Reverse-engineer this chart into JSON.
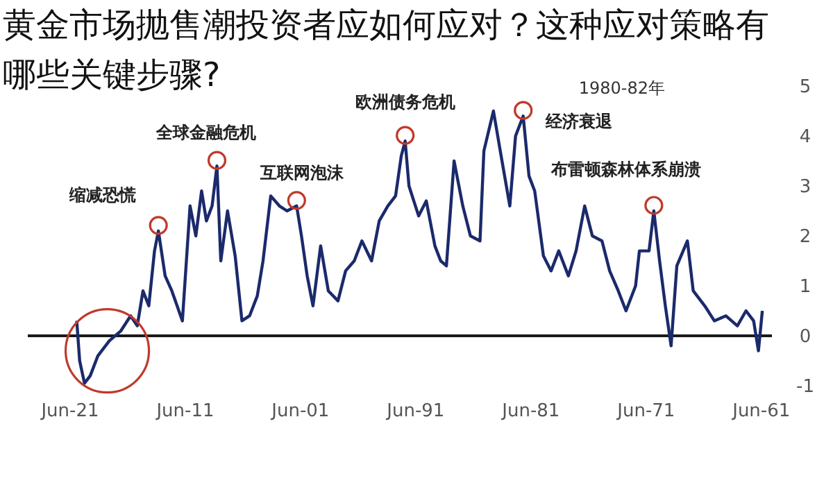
{
  "chart_data": {
    "type": "line",
    "title": "黄金市场抛售潮投资者应如何应对？这种应对策略有哪些关键步骤?",
    "x": [
      "2020-11",
      "2020-08",
      "2020-03",
      "2019-09",
      "2019-01",
      "2018-01",
      "2017-01",
      "2016-03",
      "2015-08",
      "2015-02",
      "2014-08",
      "2014-02",
      "2013-10",
      "2013-03",
      "2012-08",
      "2011-09",
      "2011-01",
      "2010-07",
      "2010-01",
      "2009-08",
      "2009-02",
      "2008-09",
      "2008-05",
      "2007-10",
      "2007-02",
      "2006-07",
      "2005-11",
      "2005-03",
      "2004-09",
      "2004-01",
      "2003-04",
      "2002-08",
      "2001-10",
      "2001-05",
      "2000-11",
      "2000-05",
      "1999-09",
      "1999-01",
      "1998-03",
      "1997-07",
      "1996-10",
      "1996-02",
      "1995-04",
      "1994-08",
      "1993-11",
      "1993-03",
      "1992-09",
      "1992-05",
      "1992-01",
      "1991-03",
      "1990-07",
      "1989-10",
      "1989-04",
      "1988-10",
      "1988-02",
      "1987-05",
      "1986-09",
      "1985-11",
      "1985-07",
      "1984-09",
      "1984-01",
      "1983-04",
      "1982-10",
      "1982-02",
      "1981-08",
      "1981-02",
      "1980-05",
      "1979-09",
      "1979-01",
      "1978-03",
      "1977-07",
      "1976-10",
      "1976-02",
      "1975-04",
      "1974-08",
      "1973-11",
      "1973-03",
      "1972-05",
      "1972-01",
      "1971-03",
      "1970-10",
      "1970-04",
      "1969-10",
      "1969-04",
      "1968-10",
      "1967-11",
      "1967-05",
      "1966-05",
      "1965-07",
      "1964-07",
      "1963-07",
      "1962-10",
      "1962-02",
      "1961-09",
      "1961-05"
    ],
    "series": [
      {
        "color": "#1b2a6b",
        "values": [
          0.3,
          -0.5,
          -0.95,
          -0.8,
          -0.4,
          -0.1,
          0.1,
          0.4,
          0.2,
          0.9,
          0.6,
          1.7,
          2.1,
          1.2,
          0.9,
          0.3,
          2.6,
          2.0,
          2.9,
          2.3,
          2.6,
          3.4,
          1.5,
          2.5,
          1.6,
          0.3,
          0.4,
          0.8,
          1.5,
          2.8,
          2.6,
          2.5,
          2.6,
          2.0,
          1.2,
          0.6,
          1.8,
          0.9,
          0.7,
          1.3,
          1.5,
          1.9,
          1.5,
          2.3,
          2.6,
          2.8,
          3.6,
          3.9,
          3.0,
          2.4,
          2.7,
          1.8,
          1.5,
          1.4,
          3.5,
          2.6,
          2.0,
          1.9,
          3.7,
          4.5,
          3.6,
          2.6,
          4.0,
          4.4,
          3.2,
          2.9,
          1.6,
          1.3,
          1.7,
          1.2,
          1.7,
          2.6,
          2.0,
          1.9,
          1.3,
          0.9,
          0.5,
          1.0,
          1.7,
          1.7,
          2.5,
          1.5,
          0.6,
          -0.2,
          1.4,
          1.9,
          0.9,
          0.6,
          0.3,
          0.4,
          0.2,
          0.5,
          0.3,
          -0.3,
          0.5
        ]
      }
    ],
    "xlim": [
      "2025-02",
      "1960-07"
    ],
    "xticks": [
      {
        "value": "2021-06",
        "label": "Jun-21"
      },
      {
        "value": "2011-06",
        "label": "Jun-11"
      },
      {
        "value": "2001-06",
        "label": "Jun-01"
      },
      {
        "value": "1991-06",
        "label": "Jun-91"
      },
      {
        "value": "1981-06",
        "label": "Jun-81"
      },
      {
        "value": "1971-06",
        "label": "Jun-71"
      },
      {
        "value": "1961-06",
        "label": "Jun-61"
      }
    ],
    "ylim": [
      -1,
      5
    ],
    "yticks": [
      -1,
      0,
      1,
      2,
      3,
      4,
      5
    ],
    "ref_lines": [
      {
        "axis": "y",
        "value": 0,
        "color": "#1a1a1a"
      }
    ],
    "annotations": [
      {
        "text": "缩减恐慌",
        "x": "2013-10",
        "y": 2.1
      },
      {
        "text": "全球金融危机",
        "x": "2008-09",
        "y": 3.4
      },
      {
        "text": "互联网泡沫",
        "x": "2001-10",
        "y": 2.6
      },
      {
        "text": "欧洲债务危机",
        "x": "1992-05",
        "y": 3.9
      },
      {
        "text": "经济衰退",
        "x": "1982-02",
        "y": 4.4
      },
      "1980-82年",
      {
        "text": "布雷顿森林体系崩溃",
        "x": "1970-10",
        "y": 2.5
      }
    ],
    "grid": false
  }
}
